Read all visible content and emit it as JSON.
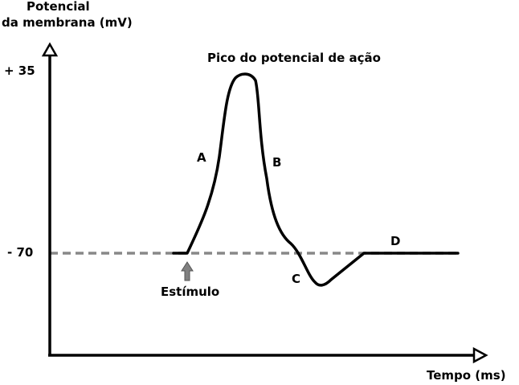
{
  "axes": {
    "y_label_line1": "Potencial",
    "y_label_line2": "da membrana (mV)",
    "x_label": "Tempo (ms)",
    "y_tick_top": "+ 35",
    "y_tick_rest": "- 70"
  },
  "annotations": {
    "peak": "Pico do potencial de ação",
    "phase_a": "A",
    "phase_b": "B",
    "phase_c": "C",
    "phase_d": "D",
    "stimulus": "Estímulo"
  },
  "colors": {
    "curve": "#000000",
    "resting_line": "#888888",
    "stimulus_arrow": "#808080"
  }
}
